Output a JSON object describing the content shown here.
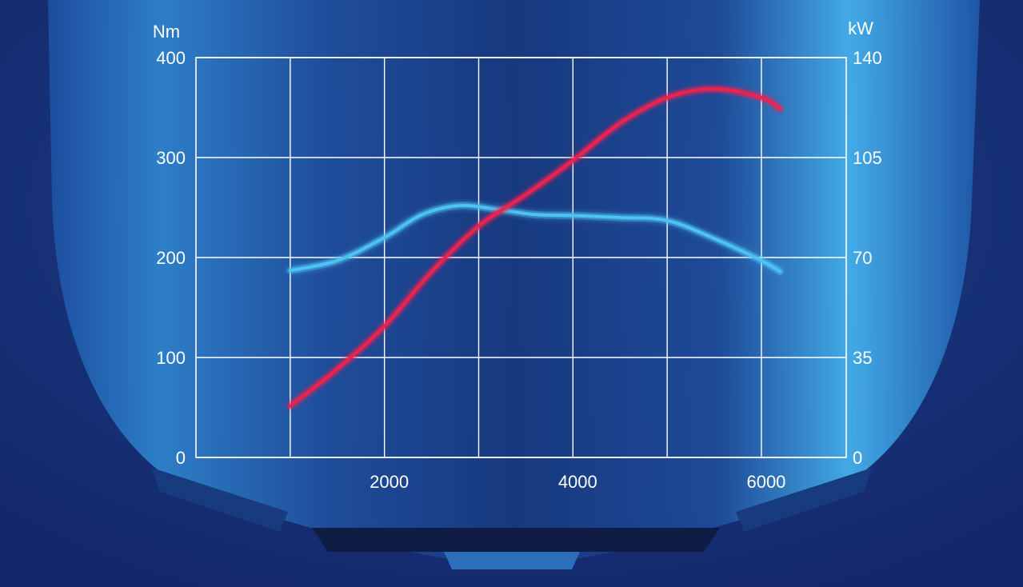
{
  "colors": {
    "background_dark": "#142a66",
    "hood_blue": "#2f8fd0",
    "grid": "#ffffff",
    "torque_line": "#4ec3f2",
    "power_line": "#ee2150"
  },
  "chart_data": {
    "type": "line",
    "title": "",
    "xlabel": "",
    "ylabel_left": "Nm",
    "ylabel_right": "kW",
    "xlim": [
      0,
      6900
    ],
    "ylim_left": [
      0,
      400
    ],
    "ylim_right": [
      0,
      140
    ],
    "x_ticks": [
      2000,
      4000,
      6000
    ],
    "x_tick_labels": [
      "2000",
      "4000",
      "6000"
    ],
    "y_left_ticks": [
      0,
      100,
      200,
      300,
      400
    ],
    "y_left_tick_labels": [
      "0",
      "100",
      "200",
      "300",
      "400"
    ],
    "y_right_ticks": [
      0,
      35,
      70,
      105,
      140
    ],
    "y_right_tick_labels": [
      "0",
      "35",
      "70",
      "105",
      "140"
    ],
    "grid": true,
    "series": [
      {
        "axis": "left",
        "color": "#4ec3f2",
        "x": [
          1000,
          1500,
          2000,
          2400,
          2800,
          3200,
          3600,
          4000,
          4500,
          5000,
          5500,
          6000,
          6200
        ],
        "y": [
          187,
          197,
          220,
          243,
          252,
          248,
          243,
          242,
          240,
          237,
          219,
          197,
          186
        ]
      },
      {
        "axis": "right",
        "color": "#ee2150",
        "x": [
          1000,
          1500,
          2000,
          2500,
          3000,
          3500,
          4000,
          4500,
          5000,
          5500,
          6000,
          6200
        ],
        "y": [
          18,
          31,
          46,
          65,
          81,
          92,
          104,
          117,
          126,
          129,
          126,
          122
        ]
      }
    ]
  }
}
